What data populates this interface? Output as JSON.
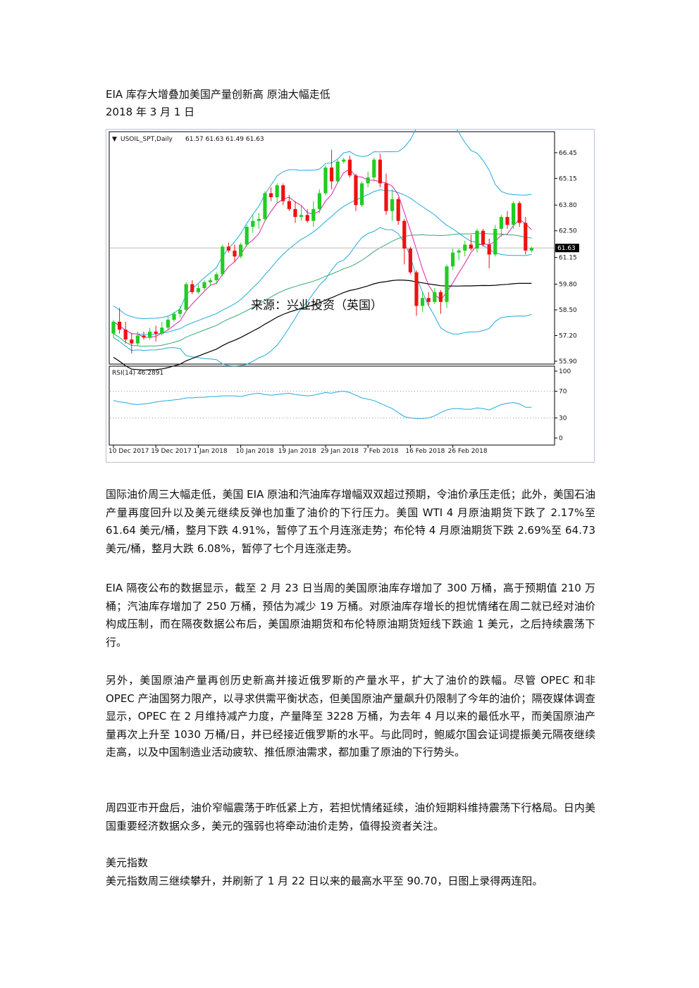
{
  "header": {
    "title": "EIA 库存大增叠加美国产量创新高 原油大幅走低",
    "date": "2018 年 3 月 1 日"
  },
  "chart_data": [
    {
      "type": "candlestick",
      "title": "USOIL_SPT,Daily",
      "ohlc_label": "61.57 61.63 61.49 61.63",
      "watermark": "来源：兴业投资（英国）",
      "ylim": [
        55.9,
        67.3
      ],
      "y_ticks": [
        "66.45",
        "65.15",
        "63.80",
        "62.50",
        "61.15",
        "59.80",
        "58.50",
        "57.20",
        "55.90"
      ],
      "current_price": "61.63",
      "x_ticks": [
        "10 Dec 2017",
        "19 Dec 2017",
        "1 Jan 2018",
        "10 Jan 2018",
        "19 Jan 2018",
        "29 Jan 2018",
        "7 Feb 2018",
        "16 Feb 2018",
        "26 Feb 2018"
      ],
      "colors": {
        "bull": "#22cc22",
        "bear": "#ee1111",
        "bb": "#22aadd",
        "ma_short": "#dd22aa",
        "ma_mid": "#33aa77",
        "ma_long": "#000000",
        "current_line": "#bbbbbb"
      },
      "candles": [
        {
          "o": 57.3,
          "h": 58.0,
          "l": 57.1,
          "c": 57.9
        },
        {
          "o": 57.9,
          "h": 58.6,
          "l": 57.3,
          "c": 57.5
        },
        {
          "o": 57.5,
          "h": 57.9,
          "l": 56.8,
          "c": 57.0
        },
        {
          "o": 57.0,
          "h": 57.3,
          "l": 56.3,
          "c": 56.8
        },
        {
          "o": 56.8,
          "h": 57.4,
          "l": 56.7,
          "c": 57.2
        },
        {
          "o": 57.2,
          "h": 57.4,
          "l": 57.0,
          "c": 57.1
        },
        {
          "o": 57.1,
          "h": 57.6,
          "l": 57.0,
          "c": 57.4
        },
        {
          "o": 57.4,
          "h": 57.7,
          "l": 56.9,
          "c": 57.3
        },
        {
          "o": 57.3,
          "h": 57.9,
          "l": 57.2,
          "c": 57.6
        },
        {
          "o": 57.6,
          "h": 58.2,
          "l": 57.5,
          "c": 58.0
        },
        {
          "o": 58.0,
          "h": 58.4,
          "l": 57.9,
          "c": 58.3
        },
        {
          "o": 58.3,
          "h": 58.7,
          "l": 58.1,
          "c": 58.5
        },
        {
          "o": 58.5,
          "h": 59.9,
          "l": 58.4,
          "c": 59.8
        },
        {
          "o": 59.8,
          "h": 60.0,
          "l": 59.3,
          "c": 59.4
        },
        {
          "o": 59.4,
          "h": 59.8,
          "l": 59.3,
          "c": 59.6
        },
        {
          "o": 59.6,
          "h": 60.0,
          "l": 59.5,
          "c": 59.9
        },
        {
          "o": 59.9,
          "h": 60.1,
          "l": 59.7,
          "c": 60.0
        },
        {
          "o": 60.0,
          "h": 60.4,
          "l": 59.8,
          "c": 60.3
        },
        {
          "o": 60.3,
          "h": 61.8,
          "l": 60.2,
          "c": 61.7
        },
        {
          "o": 61.7,
          "h": 61.9,
          "l": 61.4,
          "c": 61.5
        },
        {
          "o": 61.5,
          "h": 61.8,
          "l": 60.9,
          "c": 61.2
        },
        {
          "o": 61.2,
          "h": 61.9,
          "l": 61.1,
          "c": 61.8
        },
        {
          "o": 61.8,
          "h": 62.8,
          "l": 61.7,
          "c": 62.7
        },
        {
          "o": 62.7,
          "h": 63.3,
          "l": 62.4,
          "c": 63.0
        },
        {
          "o": 63.0,
          "h": 63.4,
          "l": 62.6,
          "c": 63.1
        },
        {
          "o": 63.1,
          "h": 64.5,
          "l": 63.0,
          "c": 64.4
        },
        {
          "o": 64.4,
          "h": 64.7,
          "l": 64.0,
          "c": 64.2
        },
        {
          "o": 64.2,
          "h": 64.9,
          "l": 63.9,
          "c": 64.8
        },
        {
          "o": 64.8,
          "h": 64.9,
          "l": 63.8,
          "c": 64.0
        },
        {
          "o": 64.0,
          "h": 64.3,
          "l": 63.5,
          "c": 63.6
        },
        {
          "o": 63.6,
          "h": 64.0,
          "l": 62.9,
          "c": 63.2
        },
        {
          "o": 63.2,
          "h": 63.8,
          "l": 63.0,
          "c": 63.3
        },
        {
          "o": 63.3,
          "h": 63.6,
          "l": 62.9,
          "c": 63.0
        },
        {
          "o": 63.0,
          "h": 64.0,
          "l": 62.7,
          "c": 63.6
        },
        {
          "o": 63.6,
          "h": 64.6,
          "l": 63.4,
          "c": 64.4
        },
        {
          "o": 64.4,
          "h": 65.8,
          "l": 64.3,
          "c": 65.7
        },
        {
          "o": 65.7,
          "h": 66.6,
          "l": 64.6,
          "c": 65.0
        },
        {
          "o": 65.0,
          "h": 66.1,
          "l": 64.9,
          "c": 66.0
        },
        {
          "o": 66.0,
          "h": 66.2,
          "l": 65.9,
          "c": 66.1
        },
        {
          "o": 66.1,
          "h": 66.3,
          "l": 65.2,
          "c": 65.3
        },
        {
          "o": 65.3,
          "h": 65.4,
          "l": 63.5,
          "c": 63.8
        },
        {
          "o": 63.8,
          "h": 65.0,
          "l": 63.7,
          "c": 64.9
        },
        {
          "o": 64.9,
          "h": 65.5,
          "l": 64.7,
          "c": 65.2
        },
        {
          "o": 65.2,
          "h": 66.2,
          "l": 65.0,
          "c": 66.1
        },
        {
          "o": 66.1,
          "h": 66.4,
          "l": 64.7,
          "c": 64.9
        },
        {
          "o": 64.9,
          "h": 65.4,
          "l": 63.3,
          "c": 63.5
        },
        {
          "o": 63.5,
          "h": 64.6,
          "l": 63.0,
          "c": 64.1
        },
        {
          "o": 64.1,
          "h": 64.2,
          "l": 62.8,
          "c": 63.0
        },
        {
          "o": 63.0,
          "h": 63.1,
          "l": 60.8,
          "c": 61.6
        },
        {
          "o": 61.6,
          "h": 61.7,
          "l": 60.3,
          "c": 60.4
        },
        {
          "o": 60.4,
          "h": 60.5,
          "l": 58.2,
          "c": 58.7
        },
        {
          "o": 58.7,
          "h": 59.4,
          "l": 58.4,
          "c": 59.1
        },
        {
          "o": 59.1,
          "h": 59.4,
          "l": 58.7,
          "c": 58.9
        },
        {
          "o": 58.9,
          "h": 59.6,
          "l": 58.8,
          "c": 59.4
        },
        {
          "o": 59.4,
          "h": 59.5,
          "l": 58.3,
          "c": 58.9
        },
        {
          "o": 58.9,
          "h": 60.8,
          "l": 58.6,
          "c": 60.7
        },
        {
          "o": 60.7,
          "h": 61.6,
          "l": 60.5,
          "c": 61.4
        },
        {
          "o": 61.4,
          "h": 61.6,
          "l": 61.0,
          "c": 61.5
        },
        {
          "o": 61.5,
          "h": 62.0,
          "l": 61.2,
          "c": 61.8
        },
        {
          "o": 61.8,
          "h": 62.3,
          "l": 61.5,
          "c": 61.6
        },
        {
          "o": 61.6,
          "h": 62.6,
          "l": 61.4,
          "c": 62.5
        },
        {
          "o": 62.5,
          "h": 62.6,
          "l": 61.7,
          "c": 61.8
        },
        {
          "o": 61.8,
          "h": 62.1,
          "l": 60.6,
          "c": 61.3
        },
        {
          "o": 61.3,
          "h": 62.8,
          "l": 61.2,
          "c": 62.6
        },
        {
          "o": 62.6,
          "h": 63.3,
          "l": 62.2,
          "c": 63.2
        },
        {
          "o": 63.2,
          "h": 63.5,
          "l": 62.6,
          "c": 62.8
        },
        {
          "o": 62.8,
          "h": 64.0,
          "l": 62.6,
          "c": 63.9
        },
        {
          "o": 63.9,
          "h": 64.0,
          "l": 62.7,
          "c": 62.9
        },
        {
          "o": 62.9,
          "h": 63.2,
          "l": 61.3,
          "c": 61.5
        },
        {
          "o": 61.5,
          "h": 61.7,
          "l": 61.4,
          "c": 61.63
        }
      ]
    },
    {
      "type": "line",
      "title": "RSI(14) 46.2891",
      "ylim": [
        0,
        100
      ],
      "y_ticks": [
        "100",
        "70",
        "30",
        "0"
      ],
      "color": "#22aadd",
      "values": [
        56,
        54,
        53,
        51,
        50,
        51,
        52,
        54,
        55,
        56,
        57,
        58,
        60,
        60,
        61,
        61,
        62,
        62,
        63,
        63,
        63,
        62,
        64,
        66,
        67,
        65,
        64,
        65,
        66,
        67,
        65,
        64,
        63,
        64,
        66,
        68,
        67,
        69,
        70,
        68,
        64,
        60,
        58,
        56,
        52,
        48,
        44,
        38,
        32,
        30,
        29,
        29,
        30,
        33,
        38,
        42,
        44,
        44,
        43,
        43,
        45,
        44,
        42,
        46,
        50,
        52,
        53,
        51,
        46,
        46
      ]
    }
  ],
  "paragraphs": [
    "国际油价周三大幅走低，美国 EIA 原油和汽油库存增幅双双超过预期，令油价承压走低；此外，美国石油产量再度回升以及美元继续反弹也加重了油价的下行压力。美国 WTI 4 月原油期货下跌了 2.17%至 61.64 美元/桶，整月下跌 4.91%，暂停了五个月连涨走势；布伦特 4 月原油期货下跌 2.69%至 64.73 美元/桶，整月大跌 6.08%，暂停了七个月连涨走势。",
    "EIA 隔夜公布的数据显示，截至 2 月 23 日当周的美国原油库存增加了 300 万桶，高于预期值 210 万桶；汽油库存增加了 250 万桶，预估为减少 19 万桶。对原油库存增长的担忧情绪在周二就已经对油价构成压制，而在隔夜数据公布后，美国原油期货和布伦特原油期货短线下跌逾 1 美元，之后持续震荡下行。",
    "另外，美国原油产量再创历史新高并接近俄罗斯的产量水平，扩大了油价的跌幅。尽管 OPEC 和非 OPEC 产油国努力限产，以寻求供需平衡状态，但美国原油产量飙升仍限制了今年的油价；隔夜媒体调查显示，OPEC 在 2 月维持减产力度，产量降至 3228 万桶，为去年 4 月以来的最低水平，而美国原油产量再次上升至 1030 万桶/日，并已经接近俄罗斯的水平。与此同时，鲍威尔国会证词提振美元隔夜继续走高，以及中国制造业活动疲软、推低原油需求，都加重了原油的下行势头。",
    "周四亚市开盘后，油价窄幅震荡于昨低紧上方，若担忧情绪延续，油价短期料维持震荡下行格局。日内美国重要经济数据众多，美元的强弱也将牵动油价走势，值得投资者关注。"
  ],
  "section": {
    "heading": "美元指数",
    "text": "美元指数周三继续攀升，并刷新了 1 月 22 日以来的最高水平至 90.70，日图上录得两连阳。"
  }
}
